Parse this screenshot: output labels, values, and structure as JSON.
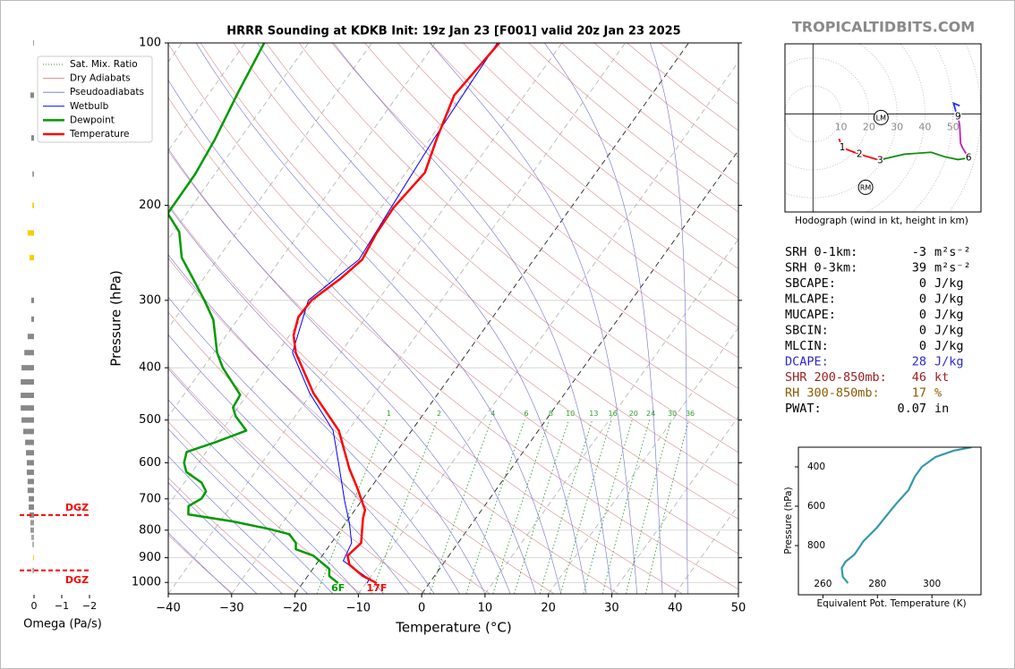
{
  "site": "TROPICALTIDBITS.COM",
  "chart_data": [
    {
      "type": "skewt",
      "title": "HRRR Sounding at KDKB Init: 19z Jan 23 [F001] valid 20z Jan 23 2025",
      "xlabel": "Temperature (°C)",
      "ylabel": "Pressure (hPa)",
      "xlim": [
        -40,
        50
      ],
      "xticks": [
        {
          "value": -40,
          "label": "−40"
        },
        {
          "value": -30,
          "label": "−30"
        },
        {
          "value": -20,
          "label": "−20"
        },
        {
          "value": -10,
          "label": "−10"
        },
        0,
        10,
        20,
        30,
        40,
        50
      ],
      "ylim": [
        1050,
        100
      ],
      "log_y": true,
      "yticks": [
        100,
        200,
        300,
        400,
        500,
        600,
        700,
        800,
        900,
        1000
      ],
      "grid": true,
      "legend": "upper left",
      "dashed_isotherms": [
        -20,
        0
      ],
      "reference_lines": [
        {
          "name": "Sat. Mix. Ratio",
          "kind": "mixing_ratio",
          "color": "#2ca02c",
          "values": [
            1,
            2,
            4,
            6,
            8,
            10,
            13,
            16,
            20,
            24,
            30,
            36
          ]
        },
        {
          "name": "Dry Adiabats",
          "kind": "dry",
          "color": "#d98c8c"
        },
        {
          "name": "Pseudoadiabats",
          "kind": "moist",
          "color": "#7070d0"
        }
      ],
      "series": [
        {
          "name": "Wetbulb",
          "color": "#0000ff",
          "pressure": [
            1003,
            985,
            912,
            845,
            776,
            705,
            604,
            523,
            446,
            375,
            300,
            252,
            202,
            150,
            100
          ],
          "values": [
            -9.8,
            -10.0,
            -16.1,
            -16.8,
            -19.4,
            -22.7,
            -27.7,
            -32.4,
            -40.3,
            -47.6,
            -51.0,
            -47.6,
            -48.4,
            -49.4,
            -50.2
          ]
        },
        {
          "name": "Dewpoint",
          "color": "#009a00",
          "surface_label": "6F",
          "pressure": [
            1003,
            973,
            944,
            892,
            868,
            845,
            814,
            796,
            771,
            748,
            722,
            699,
            678,
            653,
            624,
            600,
            573,
            550,
            523,
            492,
            474,
            449,
            423,
            400,
            375,
            326,
            300,
            272,
            250,
            224,
            207,
            175,
            151,
            124,
            100
          ],
          "values": [
            -14.4,
            -16.6,
            -17.4,
            -21.4,
            -24.9,
            -25.6,
            -27.6,
            -31.4,
            -37.9,
            -45.8,
            -46.7,
            -45.5,
            -45.6,
            -47.3,
            -50.9,
            -52.3,
            -53.1,
            -49.7,
            -46.1,
            -49.4,
            -50.8,
            -51.1,
            -54.1,
            -56.9,
            -59.5,
            -63.8,
            -67.4,
            -71.9,
            -75.8,
            -79.1,
            -83.0,
            -83.1,
            -83.9,
            -85.5,
            -87.0
          ]
        },
        {
          "name": "Temperature",
          "color": "#ff0000",
          "surface_label": "17F",
          "pressure": [
            1003,
            973,
            927,
            892,
            845,
            760,
            734,
            665,
            616,
            523,
            446,
            375,
            348,
            322,
            300,
            274,
            252,
            226,
            202,
            174,
            150,
            125,
            100
          ],
          "values": [
            -8.3,
            -11.3,
            -14.7,
            -16.0,
            -15.3,
            -17.8,
            -18.4,
            -22.3,
            -25.5,
            -31.5,
            -39.7,
            -47.1,
            -49.4,
            -50.7,
            -50.5,
            -48.4,
            -47.1,
            -47.8,
            -48.0,
            -47.0,
            -49.0,
            -51.1,
            -49.9
          ]
        }
      ]
    },
    {
      "type": "omega",
      "xlabel": "Omega (Pa/s)",
      "xlim": [
        0.5,
        -2
      ],
      "xticks": [
        0,
        {
          "value": -1,
          "label": "−1"
        },
        {
          "value": -2,
          "label": "−2"
        }
      ],
      "ylim": [
        1050,
        100
      ],
      "categories": [
        100,
        125,
        150,
        175,
        200,
        225,
        250,
        300,
        325,
        350,
        375,
        400,
        425,
        450,
        475,
        500,
        525,
        550,
        575,
        600,
        625,
        650,
        675,
        700,
        725,
        750,
        775,
        800,
        825,
        850,
        900,
        950
      ],
      "values": [
        0.03,
        0.13,
        0.1,
        0.06,
        0.06,
        0.23,
        0.16,
        0.1,
        0.1,
        0.23,
        0.35,
        0.45,
        0.48,
        0.48,
        0.48,
        0.45,
        0.39,
        0.32,
        0.29,
        0.26,
        0.26,
        0.23,
        0.23,
        0.19,
        0.19,
        0.16,
        0.13,
        0.13,
        0.1,
        0.06,
        0.03,
        0.06
      ],
      "colors": [
        "#999999",
        "#888888",
        "#888888",
        "#999999",
        "#f5d000",
        "#f5d000",
        "#f5d000",
        "#888888",
        "#888888",
        "#888888",
        "#888888",
        "#888888",
        "#888888",
        "#888888",
        "#888888",
        "#888888",
        "#888888",
        "#888888",
        "#888888",
        "#888888",
        "#888888",
        "#888888",
        "#888888",
        "#888888",
        "#888888",
        "#888888",
        "#999999",
        "#999999",
        "#aaaaaa",
        "#aaaaaa",
        "#f5d000",
        "#aaaaaa"
      ],
      "annotations": [
        {
          "text": "DGZ",
          "pressure": 750,
          "color": "#ff0000"
        },
        {
          "text": "DGZ",
          "pressure": 950,
          "color": "#ff0000"
        }
      ]
    },
    {
      "type": "hodograph",
      "caption": "Hodograph (wind in kt, height in km)",
      "xlim": [
        -10,
        60
      ],
      "ylim": [
        -35,
        25
      ],
      "rings": [
        10,
        20,
        30,
        40,
        50
      ],
      "series": [
        {
          "color": "#ff0000",
          "x": [
            9.3,
            10.5,
            16.6,
            24.0
          ],
          "values": [
            -8.9,
            -12.1,
            -14.4,
            -16.6
          ],
          "labels": [
            null,
            "1",
            "2",
            "3"
          ]
        },
        {
          "color": "#109010",
          "x": [
            24.0,
            25.6,
            32.6,
            42.2,
            47.0,
            51.8,
            55.6
          ],
          "values": [
            -16.6,
            -16.0,
            -14.4,
            -13.7,
            -15.3,
            -16.3,
            -15.7
          ],
          "labels": [
            null,
            null,
            null,
            null,
            null,
            null,
            "6"
          ]
        },
        {
          "color": "#c020c0",
          "x": [
            55.6,
            53.4,
            52.7,
            52.4,
            51.8
          ],
          "values": [
            -15.7,
            -12.1,
            -10.5,
            -4.2,
            -1.0
          ],
          "labels": [
            null,
            null,
            null,
            null,
            "9"
          ]
        },
        {
          "color": "#2030ff",
          "x": [
            51.8,
            51.1,
            50.2,
            52.4
          ],
          "values": [
            -1.0,
            0.6,
            3.8,
            2.9
          ],
          "labels": [
            null,
            null,
            null,
            null
          ]
        }
      ],
      "storm_motion": [
        {
          "label": "LM",
          "x": 24.3,
          "y": -1.3
        },
        {
          "label": "RM",
          "x": 18.8,
          "y": -26.2
        }
      ]
    },
    {
      "type": "profile",
      "xlabel": "Equivalent Pot. Temperature (K)",
      "ylabel": "Pressure (hPa)",
      "xlim": [
        251,
        318
      ],
      "xticks": [
        260,
        280,
        300
      ],
      "ylim": [
        1050,
        300
      ],
      "yticks": [
        400,
        600,
        800
      ],
      "series": [
        {
          "color": "#3399aa",
          "pressure": [
            991,
            959,
            914,
            882,
            845,
            777,
            709,
            664,
            595,
            518,
            450,
            400,
            350,
            318,
            300
          ],
          "values": [
            269.2,
            267.3,
            266.9,
            268.3,
            271.6,
            274.9,
            279.8,
            282.4,
            286.4,
            291.4,
            293.7,
            296.3,
            301.3,
            307.9,
            314.5
          ]
        }
      ]
    }
  ],
  "parameters": [
    {
      "label": "SRH 0-1km:",
      "value": "-3",
      "unit": "m²s⁻²"
    },
    {
      "label": "SRH 0-3km:",
      "value": "39",
      "unit": "m²s⁻²"
    },
    {
      "label": "SBCAPE:",
      "value": "0",
      "unit": "J/kg"
    },
    {
      "label": "MLCAPE:",
      "value": "0",
      "unit": "J/kg"
    },
    {
      "label": "MUCAPE:",
      "value": "0",
      "unit": "J/kg"
    },
    {
      "label": "SBCIN:",
      "value": "0",
      "unit": "J/kg"
    },
    {
      "label": "MLCIN:",
      "value": "0",
      "unit": "J/kg"
    },
    {
      "label": "DCAPE:",
      "value": "28",
      "unit": "J/kg",
      "color": "#2a2ad0"
    },
    {
      "label": "SHR 200-850mb:",
      "value": "46",
      "unit": "kt",
      "color": "#a02020"
    },
    {
      "label": "RH 300-850mb:",
      "value": "17",
      "unit": "%",
      "color": "#8b5a00"
    },
    {
      "label": "PWAT:",
      "value": "0.07",
      "unit": "in"
    }
  ]
}
